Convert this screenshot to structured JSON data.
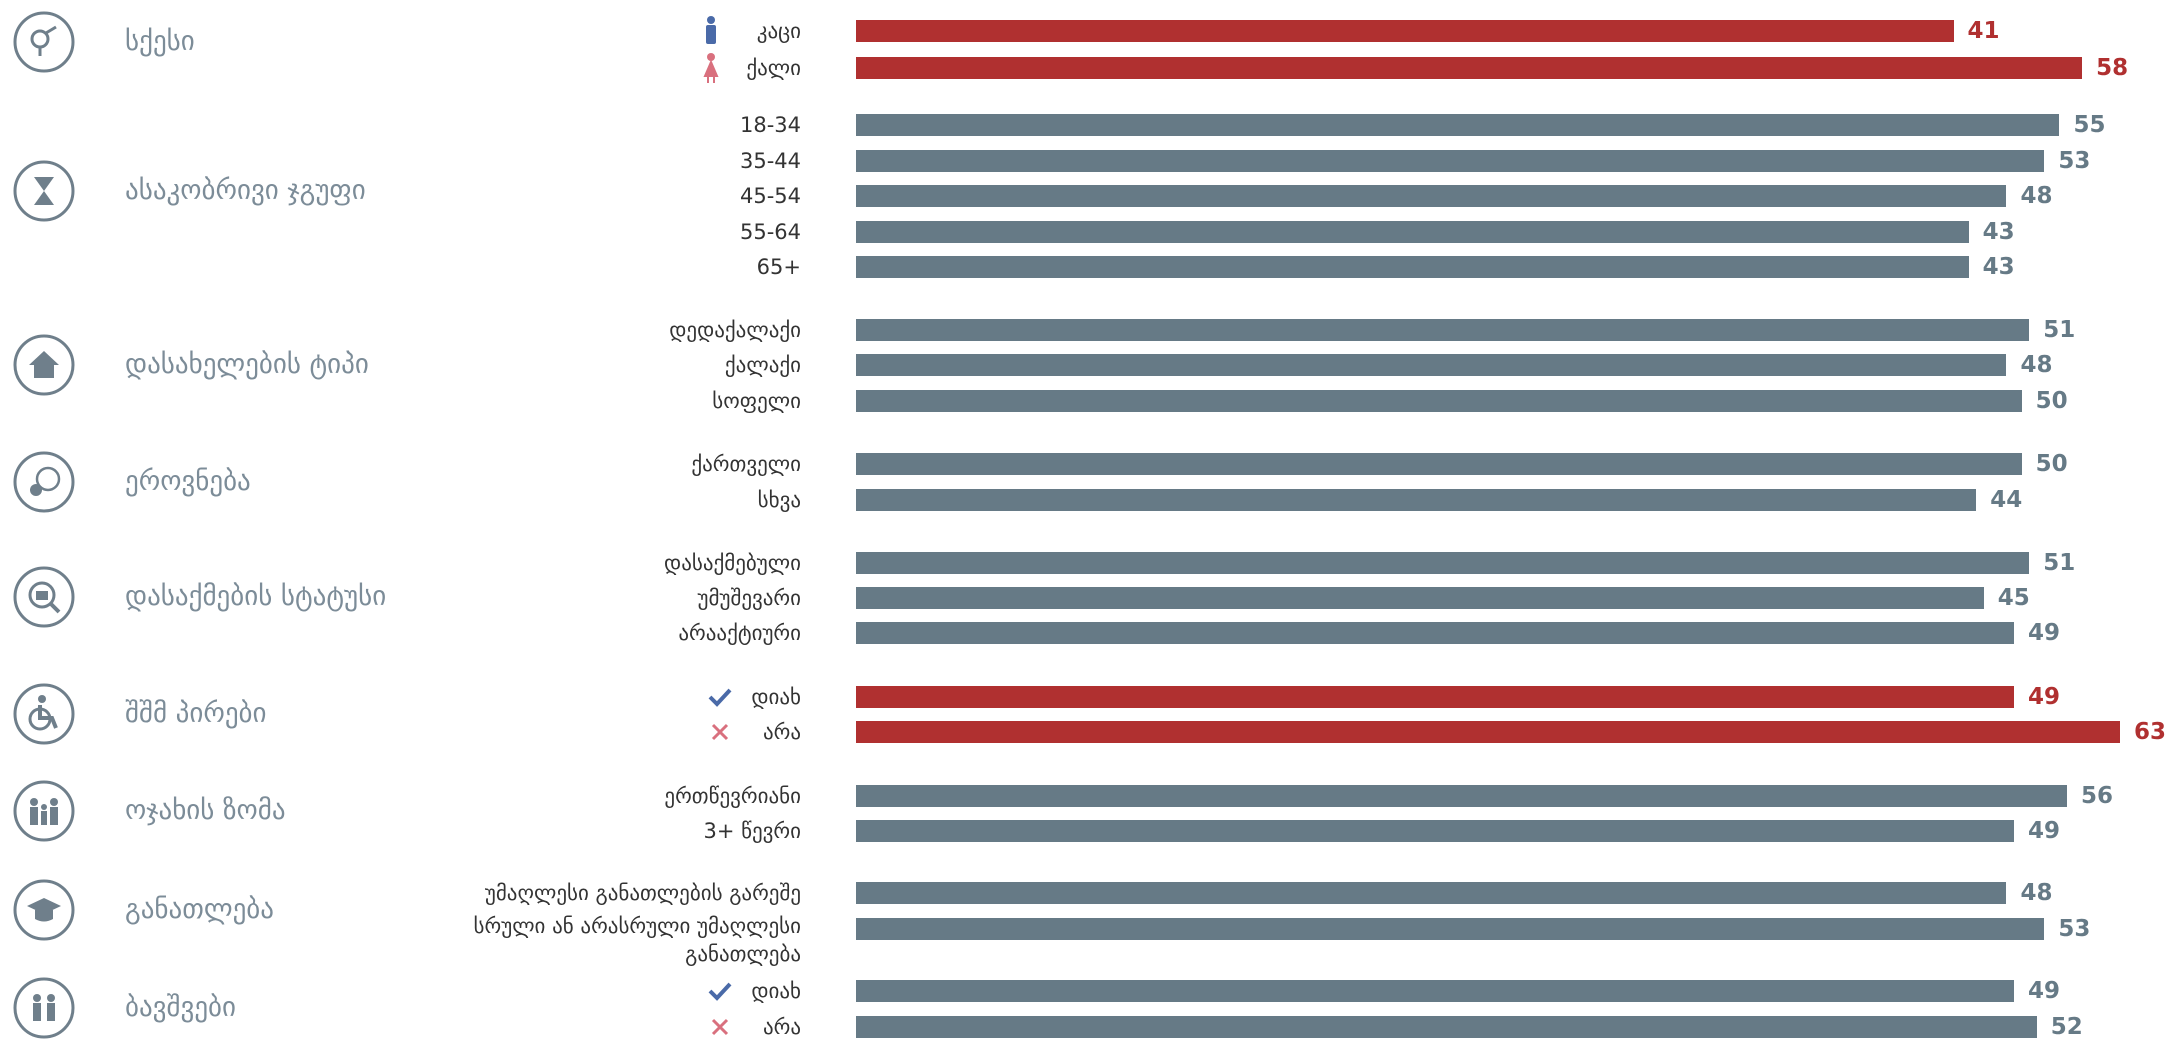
{
  "chart_data": {
    "type": "bar",
    "xlim": [
      -104,
      70
    ],
    "groups": [
      {
        "name": "სქესი",
        "categories": [
          "კაცი",
          "ქალი"
        ],
        "values": [
          41,
          58
        ],
        "color": "#b03030"
      },
      {
        "name": "ასაკობრივი ჯგუფი",
        "categories": [
          "18-34",
          "35-44",
          "45-54",
          "55-64",
          "65+"
        ],
        "values": [
          55,
          53,
          48,
          43,
          43
        ],
        "color": "#667a86"
      },
      {
        "name": "დასახელების ტიპი",
        "categories": [
          "დედაქალაქი",
          "ქალაქი",
          "სოფელი"
        ],
        "values": [
          51,
          48,
          50
        ],
        "color": "#667a86"
      },
      {
        "name": "ეროვნება",
        "categories": [
          "ქართველი",
          "სხვა"
        ],
        "values": [
          50,
          44
        ],
        "color": "#667a86"
      },
      {
        "name": "დასაქმების სტატუსი",
        "categories": [
          "დასაქმებული",
          "უმუშევარი",
          "არააქტიური"
        ],
        "values": [
          51,
          45,
          49
        ],
        "color": "#667a86"
      },
      {
        "name": "შშმ პირები",
        "categories": [
          "დიახ",
          "არა"
        ],
        "values": [
          49,
          63
        ],
        "color": "#b03030"
      },
      {
        "name": "ოჯახის ზომა",
        "categories": [
          "ერთწევრიანი",
          "3+ წევრი"
        ],
        "values": [
          56,
          49
        ],
        "color": "#667a86"
      },
      {
        "name": "განათლება",
        "categories": [
          "უმაღლესი განათლების გარეშე",
          "სრული ან არასრული უმაღლესი განათლება"
        ],
        "values": [
          48,
          53
        ],
        "color": "#667a86"
      },
      {
        "name": "ბავშვები",
        "categories": [
          "დიახ",
          "არა"
        ],
        "values": [
          49,
          52
        ],
        "color": "#667a86"
      }
    ]
  }
}
